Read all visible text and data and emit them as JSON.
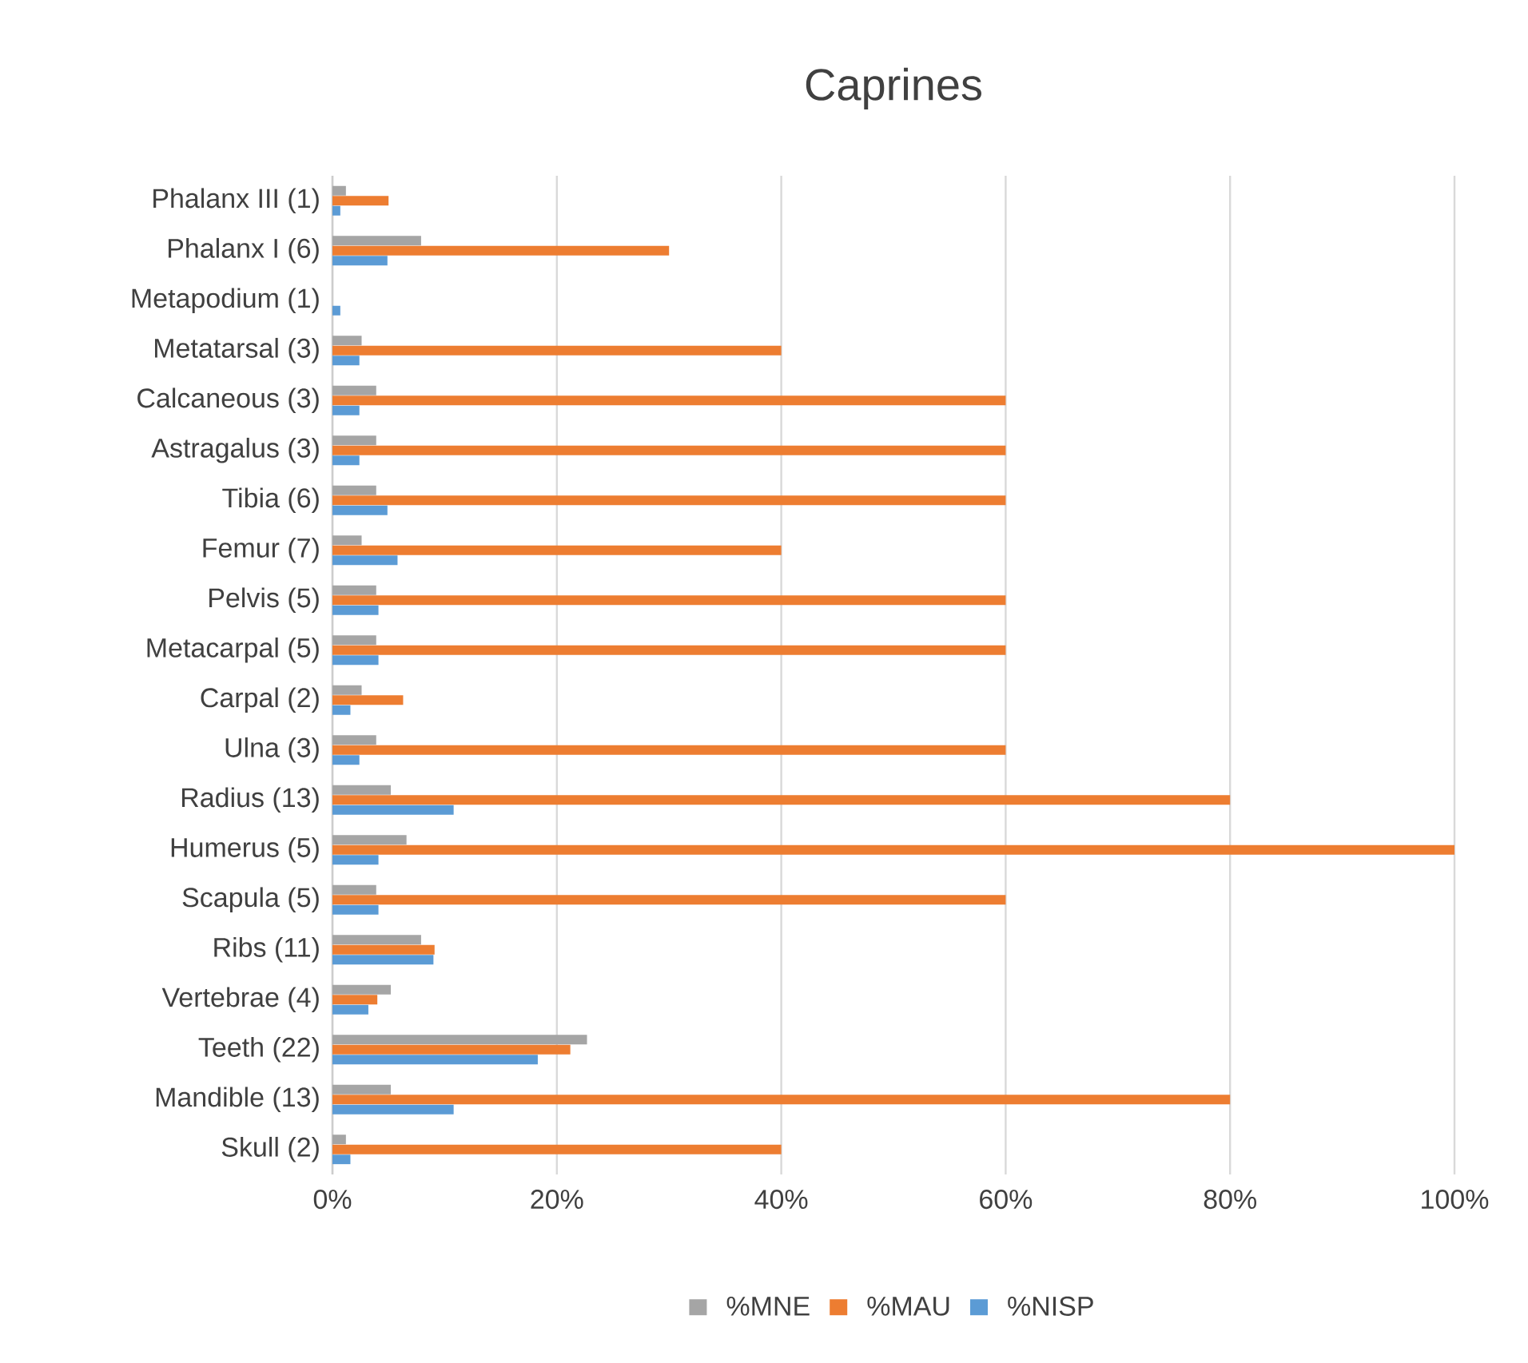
{
  "chart_data": {
    "type": "bar",
    "orientation": "horizontal",
    "title": "Caprines",
    "categories": [
      "Phalanx III (1)",
      "Phalanx I (6)",
      "Metapodium (1)",
      "Metatarsal (3)",
      "Calcaneous (3)",
      "Astragalus (3)",
      "Tibia (6)",
      "Femur (7)",
      "Pelvis (5)",
      "Metacarpal (5)",
      "Carpal (2)",
      "Ulna (3)",
      "Radius (13)",
      "Humerus (5)",
      "Scapula (5)",
      "Ribs (11)",
      "Vertebrae (4)",
      "Teeth (22)",
      "Mandible (13)",
      "Skull (2)"
    ],
    "series": [
      {
        "name": "%MNE",
        "color": "#a5a5a5",
        "values": [
          1.2,
          7.9,
          0,
          2.6,
          3.9,
          3.9,
          3.9,
          2.6,
          3.9,
          3.9,
          2.6,
          3.9,
          5.2,
          6.6,
          3.9,
          7.9,
          5.2,
          22.7,
          5.2,
          1.2
        ]
      },
      {
        "name": "%MAU",
        "color": "#ed7d31",
        "values": [
          5,
          30,
          0,
          40,
          60,
          60,
          60,
          40,
          60,
          60,
          6.3,
          60,
          80,
          100,
          60,
          9.1,
          4,
          21.2,
          80,
          40
        ]
      },
      {
        "name": "%NISP",
        "color": "#5b9bd5",
        "values": [
          0.7,
          4.9,
          0.7,
          2.4,
          2.4,
          2.4,
          4.9,
          5.8,
          4.1,
          4.1,
          1.6,
          2.4,
          10.8,
          4.1,
          4.1,
          9,
          3.2,
          18.3,
          10.8,
          1.6
        ]
      }
    ],
    "xlim": [
      0,
      100
    ],
    "xticks": [
      {
        "value": 0,
        "label": "0%"
      },
      {
        "value": 20,
        "label": "20%"
      },
      {
        "value": 40,
        "label": "40%"
      },
      {
        "value": 60,
        "label": "60%"
      },
      {
        "value": 80,
        "label": "80%"
      },
      {
        "value": 100,
        "label": "100%"
      }
    ],
    "grid": "x",
    "legend": "bottom"
  }
}
